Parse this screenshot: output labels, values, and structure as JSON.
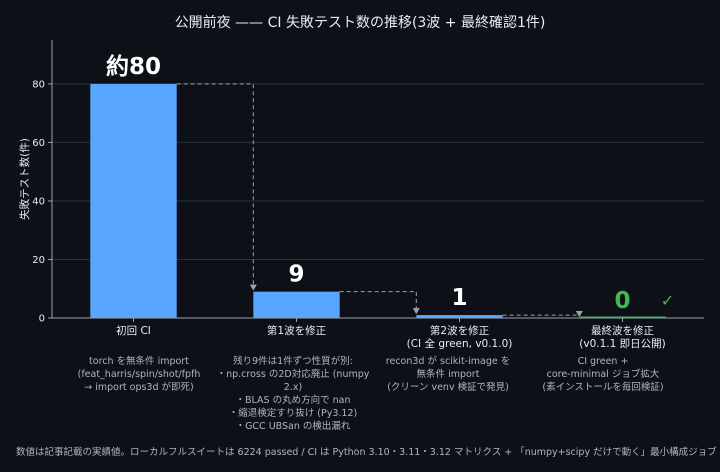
{
  "chart_data": {
    "type": "bar",
    "title": "公開前夜 —— CI 失敗テスト数の推移(3波 + 最終確認1件)",
    "ylabel": "失敗テスト数(件)",
    "xlabel": "",
    "ylim": [
      0,
      95
    ],
    "yticks": [
      "0",
      "20",
      "40",
      "60",
      "80"
    ],
    "grid": true,
    "categories": [
      "初回 CI",
      "第1波を修正",
      "第2波を修正\n(CI 全 green, v0.1.0)",
      "最終波を修正\n(v0.1.1 即日公開)"
    ],
    "values": [
      80,
      9,
      1,
      0
    ],
    "data_labels": [
      "約80",
      "9",
      "1",
      "0"
    ],
    "bar_colors": [
      "#58a6ff",
      "#58a6ff",
      "#58a6ff",
      "#3fb950"
    ],
    "data_label_colors": [
      "#ffffff",
      "#ffffff",
      "#ffffff",
      "#3fb950"
    ],
    "check_mark": "✓",
    "notes": [
      "torch を無条件 import\n(feat_harris/spin/shot/fpfh\n→ import ops3d が即死)",
      "残り9件は1件ずつ性質が別:\n・np.cross の2D対応廃止 (numpy 2.x)\n・BLAS の丸め方向で nan\n・縮退検定すり抜け (Py3.12)\n・GCC UBSan の検出漏れ",
      "recon3d が scikit-image を\n無条件 import\n(クリーン venv 検証で発見)",
      "CI green +\ncore-minimal ジョブ拡大\n(素インストールを毎回検証)"
    ]
  },
  "footnote": "数値は記事記載の実績値。ローカルフルスイートは 6224 passed / CI は Python 3.10・3.11・3.12 マトリクス + 「numpy+scipy だけで動く」最小構成ジョブ",
  "colors": {
    "background": "#0d1117",
    "grid": "#2a313b",
    "axis": "#9aa4b0",
    "text": "#e6edf3",
    "muted": "#aeb6c0"
  }
}
